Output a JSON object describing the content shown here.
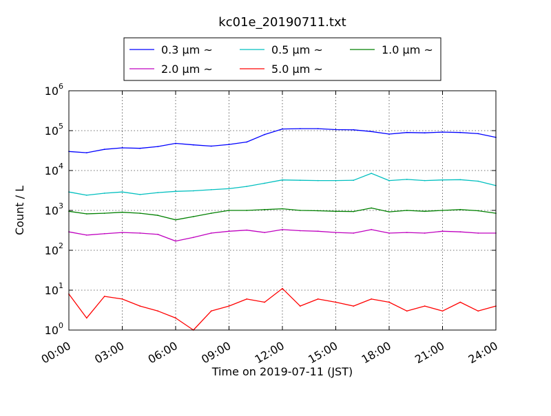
{
  "chart_data": {
    "type": "line",
    "title": "kc01e_20190711.txt",
    "xlabel": "Time on 2019-07-11 (JST)",
    "ylabel": "Count / L",
    "yscale": "log",
    "ylim": [
      1,
      1000000
    ],
    "xlim": [
      "00:00",
      "24:00"
    ],
    "grid": true,
    "legend_position": "top",
    "xticks": [
      "00:00",
      "03:00",
      "06:00",
      "09:00",
      "12:00",
      "15:00",
      "18:00",
      "21:00",
      "24:00"
    ],
    "yticks": [
      {
        "base": "10",
        "exp": "0"
      },
      {
        "base": "10",
        "exp": "1"
      },
      {
        "base": "10",
        "exp": "2"
      },
      {
        "base": "10",
        "exp": "3"
      },
      {
        "base": "10",
        "exp": "4"
      },
      {
        "base": "10",
        "exp": "5"
      },
      {
        "base": "10",
        "exp": "6"
      }
    ],
    "x": [
      "00:00",
      "01:00",
      "02:00",
      "03:00",
      "04:00",
      "05:00",
      "06:00",
      "07:00",
      "08:00",
      "09:00",
      "10:00",
      "11:00",
      "12:00",
      "13:00",
      "14:00",
      "15:00",
      "16:00",
      "17:00",
      "18:00",
      "19:00",
      "20:00",
      "21:00",
      "22:00",
      "23:00",
      "24:00"
    ],
    "series": [
      {
        "name": "0.3 μm ~",
        "color": "#0000ff",
        "values": [
          30000,
          28000,
          34000,
          37000,
          36000,
          40000,
          48000,
          44000,
          41000,
          45000,
          52000,
          80000,
          110000,
          112000,
          112000,
          106000,
          105000,
          95000,
          82000,
          90000,
          88000,
          92000,
          90000,
          84000,
          68000
        ]
      },
      {
        "name": "0.5 μm ~",
        "color": "#00bfbf",
        "values": [
          2900,
          2400,
          2700,
          2900,
          2500,
          2800,
          3000,
          3100,
          3300,
          3500,
          4000,
          4800,
          5800,
          5700,
          5600,
          5600,
          5700,
          8500,
          5600,
          6000,
          5600,
          5800,
          5900,
          5400,
          4200
        ]
      },
      {
        "name": "1.0 μm ~",
        "color": "#008000",
        "values": [
          950,
          820,
          850,
          900,
          850,
          750,
          580,
          700,
          850,
          1000,
          1000,
          1050,
          1100,
          1000,
          980,
          950,
          940,
          1150,
          920,
          1000,
          950,
          1000,
          1050,
          980,
          850
        ]
      },
      {
        "name": "2.0 μm ~",
        "color": "#bf00bf",
        "values": [
          290,
          240,
          260,
          280,
          270,
          250,
          170,
          210,
          270,
          300,
          320,
          280,
          330,
          310,
          300,
          280,
          270,
          330,
          270,
          280,
          270,
          300,
          290,
          270,
          270
        ]
      },
      {
        "name": "5.0 μm ~",
        "color": "#ff0000",
        "values": [
          8,
          2,
          7,
          6,
          4,
          3,
          2,
          1,
          3,
          4,
          6,
          5,
          11,
          4,
          6,
          5,
          4,
          6,
          5,
          3,
          4,
          3,
          5,
          3,
          4
        ]
      }
    ]
  }
}
